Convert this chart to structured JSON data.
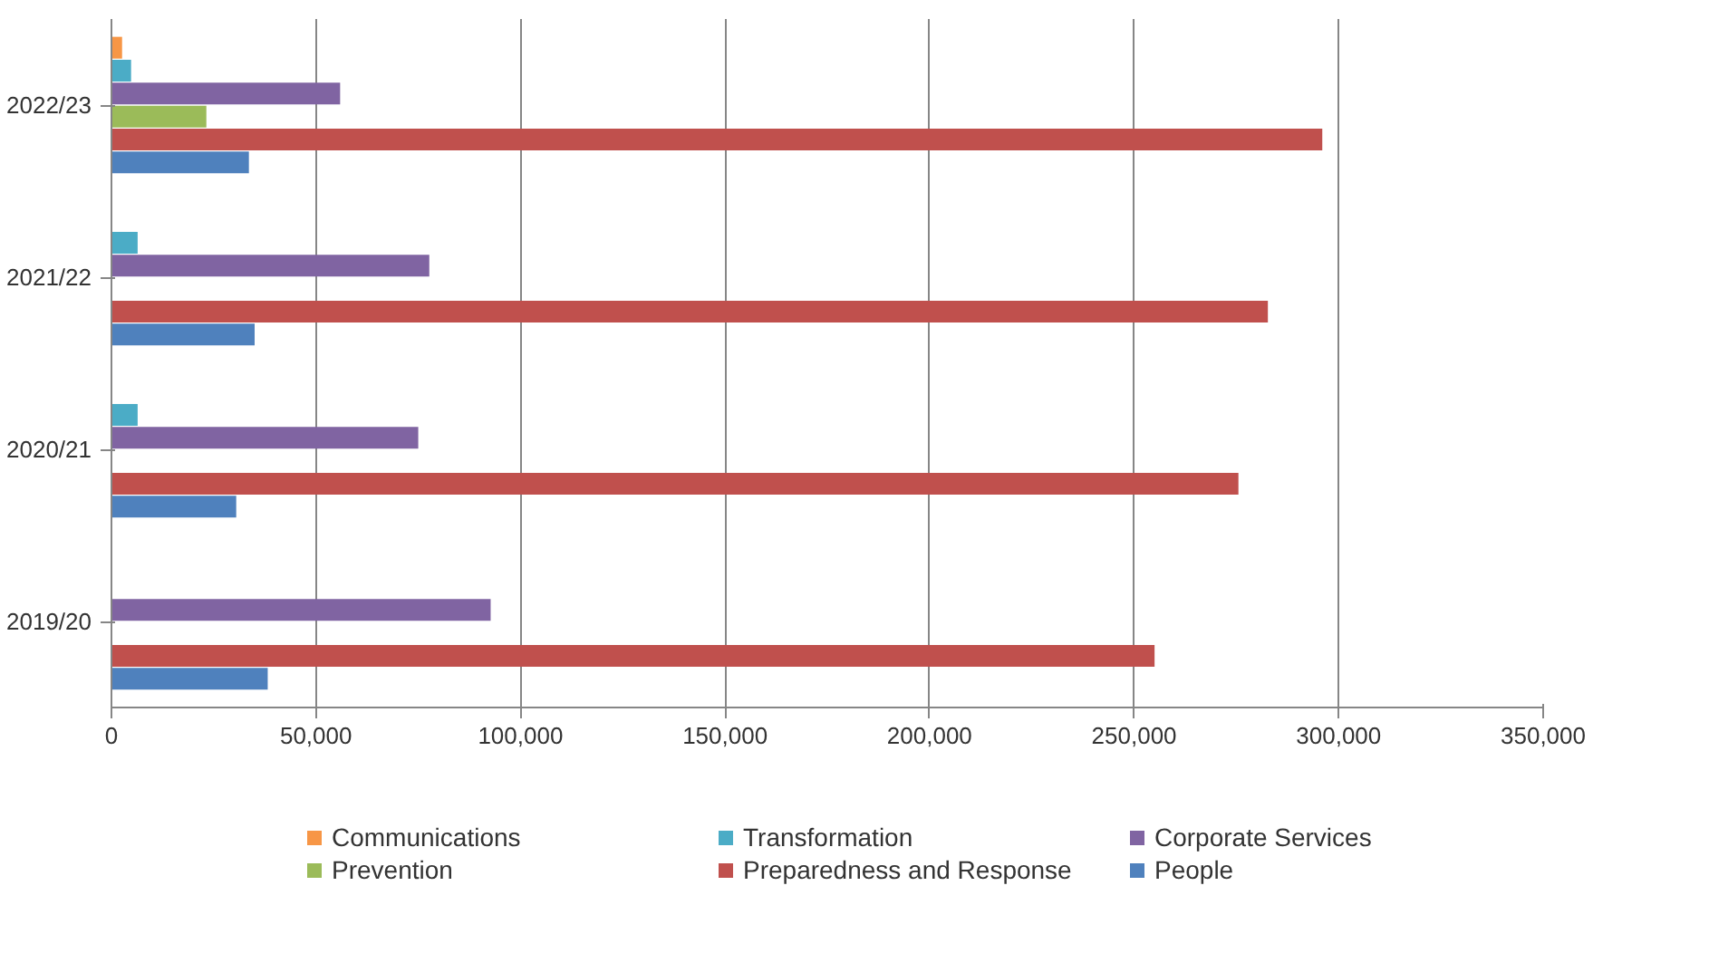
{
  "chart_data": {
    "type": "bar",
    "orientation": "horizontal",
    "categories": [
      "2022/23",
      "2021/22",
      "2020/21",
      "2019/20"
    ],
    "series": [
      {
        "name": "Communications",
        "color": "#f79646",
        "values": [
          2600,
          null,
          null,
          null
        ]
      },
      {
        "name": "Transformation",
        "color": "#4bacc6",
        "values": [
          4800,
          6400,
          6400,
          null
        ]
      },
      {
        "name": "Corporate Services",
        "color": "#8064a2",
        "values": [
          55900,
          77700,
          75000,
          92700
        ]
      },
      {
        "name": "Prevention",
        "color": "#9bbb59",
        "values": [
          23200,
          null,
          null,
          null
        ]
      },
      {
        "name": "Preparedness and Response",
        "color": "#c0504d",
        "values": [
          296000,
          282700,
          275500,
          255000
        ]
      },
      {
        "name": "People",
        "color": "#4f81bd",
        "values": [
          33600,
          35000,
          30500,
          38200
        ]
      }
    ],
    "xlim": [
      0,
      350000
    ],
    "xticks": [
      0,
      {
        "value": 50000,
        "label": "50,000"
      },
      {
        "value": 100000,
        "label": "100,000"
      },
      {
        "value": 150000,
        "label": "150,000"
      },
      {
        "value": 200000,
        "label": "200,000"
      },
      {
        "value": 250000,
        "label": "250,000"
      },
      {
        "value": 300000,
        "label": "300,000"
      },
      {
        "value": 350000,
        "label": "350,000"
      }
    ],
    "grid": "x",
    "legend": "bottom"
  }
}
